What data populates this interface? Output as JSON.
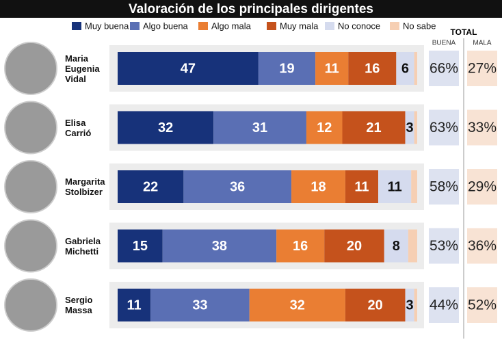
{
  "chart_data": {
    "type": "stacked-bar-horizontal",
    "title": "Valoración de los principales dirigentes",
    "categories": [
      "Maria Eugenia Vidal",
      "Elisa Carrió",
      "Margarita Stolbizer",
      "Gabriela Michetti",
      "Sergio Massa"
    ],
    "xlim": [
      0,
      100
    ],
    "series": [
      {
        "name": "Muy buena",
        "color": "#17327a",
        "values": [
          47,
          32,
          22,
          15,
          11
        ]
      },
      {
        "name": "Algo buena",
        "color": "#5a6fb4",
        "values": [
          19,
          31,
          36,
          38,
          33
        ]
      },
      {
        "name": "Algo mala",
        "color": "#ea7e33",
        "values": [
          11,
          12,
          18,
          16,
          32
        ]
      },
      {
        "name": "Muy mala",
        "color": "#c5521c",
        "values": [
          16,
          21,
          11,
          20,
          20
        ]
      },
      {
        "name": "No conoce",
        "color": "#d5dbee",
        "values": [
          6,
          3,
          11,
          8,
          3
        ]
      },
      {
        "name": "No sabe",
        "color": "#f6cfb3",
        "values": [
          1,
          1,
          2,
          3,
          1
        ]
      }
    ],
    "totals": {
      "title": "TOTAL",
      "columns": [
        {
          "name": "BUENA",
          "color": "#dde2f0",
          "values": [
            66,
            63,
            58,
            53,
            44
          ],
          "value_labels": [
            "66%",
            "63%",
            "58%",
            "53%",
            "44%"
          ]
        },
        {
          "name": "MALA",
          "color": "#f8e3d4",
          "values": [
            27,
            33,
            29,
            36,
            52
          ],
          "value_labels": [
            "27%",
            "33%",
            "29%",
            "36%",
            "52%"
          ]
        }
      ]
    }
  }
}
